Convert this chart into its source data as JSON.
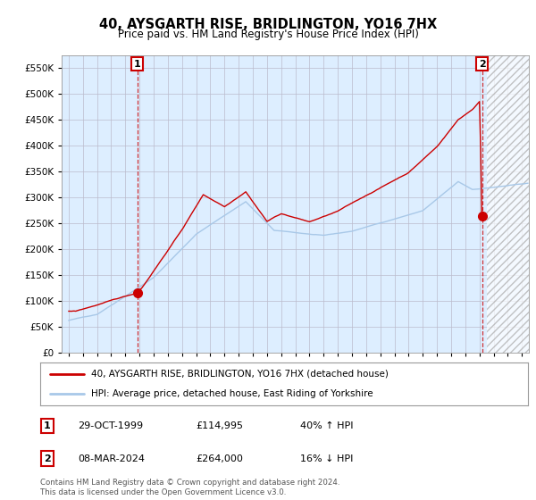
{
  "title": "40, AYSGARTH RISE, BRIDLINGTON, YO16 7HX",
  "subtitle": "Price paid vs. HM Land Registry's House Price Index (HPI)",
  "legend_line1": "40, AYSGARTH RISE, BRIDLINGTON, YO16 7HX (detached house)",
  "legend_line2": "HPI: Average price, detached house, East Riding of Yorkshire",
  "sale1_label": "1",
  "sale1_date": "29-OCT-1999",
  "sale1_price": "£114,995",
  "sale1_hpi": "40% ↑ HPI",
  "sale1_year": 1999.83,
  "sale1_value": 114995,
  "sale2_label": "2",
  "sale2_date": "08-MAR-2024",
  "sale2_price": "£264,000",
  "sale2_hpi": "16% ↓ HPI",
  "sale2_year": 2024.19,
  "sale2_value": 264000,
  "hpi_color": "#a8c8e8",
  "price_color": "#cc0000",
  "background_color": "#ffffff",
  "plot_bg_color": "#ddeeff",
  "grid_color": "#bbbbcc",
  "ylim": [
    0,
    575000
  ],
  "xlim_start": 1994.5,
  "xlim_end": 2027.5,
  "footer": "Contains HM Land Registry data © Crown copyright and database right 2024.\nThis data is licensed under the Open Government Licence v3.0."
}
